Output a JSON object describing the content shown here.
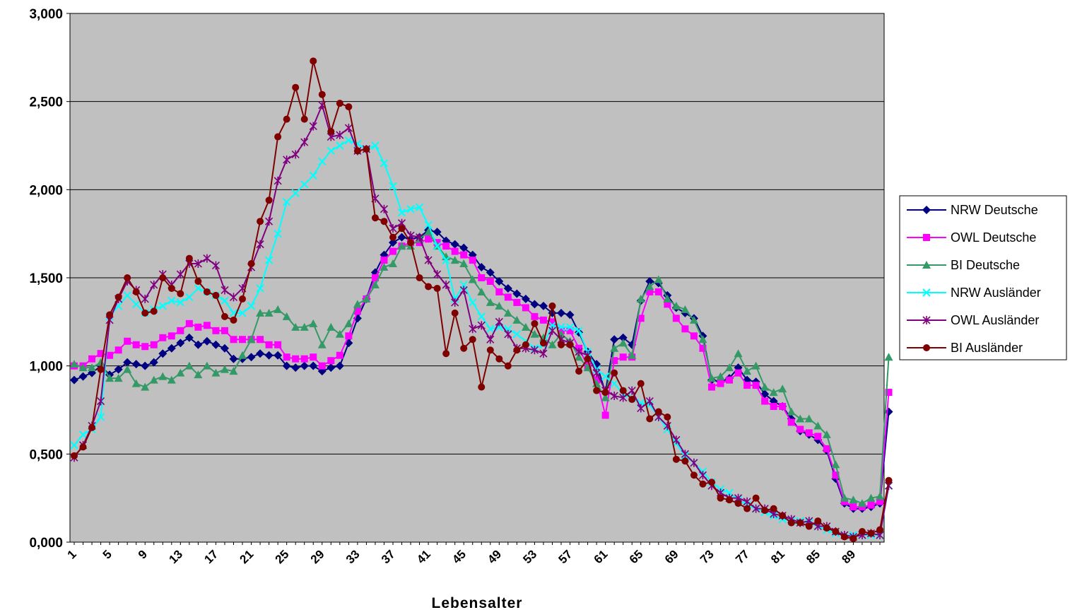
{
  "chart_data": {
    "type": "line",
    "xlabel": "Lebensalter",
    "ylabel": "",
    "ylim": [
      0,
      3
    ],
    "yticks": [
      0,
      0.5,
      1,
      1.5,
      2,
      2.5,
      3
    ],
    "ytick_labels": [
      "0,000",
      "0,500",
      "1,000",
      "1,500",
      "2,000",
      "2,500",
      "3,000"
    ],
    "xrange": [
      1,
      92
    ],
    "xticks": [
      1,
      5,
      9,
      13,
      17,
      21,
      25,
      29,
      33,
      37,
      41,
      45,
      49,
      53,
      57,
      61,
      65,
      69,
      73,
      77,
      81,
      85,
      89
    ],
    "xtick_labels": [
      "1",
      "5",
      "9",
      "13",
      "17",
      "21",
      "25",
      "29",
      "33",
      "37",
      "41",
      "45",
      "49",
      "53",
      "57",
      "61",
      "65",
      "69",
      "73",
      "77",
      "81",
      "85",
      "89"
    ],
    "grid": "horizontal",
    "plot_background": "#c0c0c0",
    "legend_position": "right",
    "series": [
      {
        "name": "NRW Deutsche",
        "color": "#000080",
        "marker": "diamond",
        "values": [
          0.92,
          0.94,
          0.96,
          1.0,
          0.95,
          0.98,
          1.02,
          1.01,
          1.0,
          1.02,
          1.07,
          1.1,
          1.13,
          1.16,
          1.12,
          1.14,
          1.12,
          1.1,
          1.04,
          1.04,
          1.05,
          1.07,
          1.06,
          1.06,
          1.0,
          0.99,
          1.0,
          1.0,
          0.97,
          0.99,
          1.0,
          1.13,
          1.27,
          1.38,
          1.53,
          1.63,
          1.7,
          1.73,
          1.72,
          1.73,
          1.77,
          1.76,
          1.71,
          1.69,
          1.67,
          1.63,
          1.56,
          1.53,
          1.48,
          1.44,
          1.41,
          1.38,
          1.35,
          1.34,
          1.3,
          1.3,
          1.29,
          1.19,
          1.08,
          1.01,
          0.85,
          1.15,
          1.16,
          1.12,
          1.37,
          1.48,
          1.47,
          1.4,
          1.33,
          1.3,
          1.27,
          1.17,
          0.92,
          0.91,
          0.93,
          0.99,
          0.92,
          0.91,
          0.84,
          0.8,
          0.77,
          0.7,
          0.63,
          0.61,
          0.58,
          0.52,
          0.36,
          0.22,
          0.19,
          0.19,
          0.2,
          0.22,
          0.74
        ]
      },
      {
        "name": "OWL Deutsche",
        "color": "#ff00ff",
        "marker": "square",
        "values": [
          1.0,
          1.0,
          1.04,
          1.07,
          1.06,
          1.09,
          1.14,
          1.12,
          1.11,
          1.12,
          1.16,
          1.17,
          1.2,
          1.24,
          1.22,
          1.23,
          1.2,
          1.2,
          1.15,
          1.15,
          1.15,
          1.15,
          1.12,
          1.12,
          1.05,
          1.04,
          1.04,
          1.05,
          1.0,
          1.03,
          1.06,
          1.17,
          1.31,
          1.38,
          1.5,
          1.6,
          1.65,
          1.68,
          1.7,
          1.7,
          1.72,
          1.7,
          1.68,
          1.65,
          1.63,
          1.6,
          1.5,
          1.48,
          1.42,
          1.39,
          1.36,
          1.33,
          1.28,
          1.26,
          1.25,
          1.2,
          1.2,
          1.1,
          1.0,
          0.92,
          0.72,
          1.03,
          1.05,
          1.05,
          1.27,
          1.42,
          1.42,
          1.35,
          1.27,
          1.21,
          1.17,
          1.1,
          0.88,
          0.9,
          0.92,
          0.96,
          0.89,
          0.89,
          0.8,
          0.77,
          0.77,
          0.68,
          0.64,
          0.62,
          0.6,
          0.53,
          0.38,
          0.23,
          0.2,
          0.2,
          0.21,
          0.23,
          0.85
        ]
      },
      {
        "name": "BI Deutsche",
        "color": "#339966",
        "marker": "triangle",
        "values": [
          1.01,
          0.99,
          0.99,
          1.02,
          0.93,
          0.93,
          0.98,
          0.9,
          0.88,
          0.92,
          0.94,
          0.92,
          0.96,
          1.0,
          0.95,
          1.0,
          0.96,
          0.98,
          0.97,
          1.06,
          1.15,
          1.3,
          1.3,
          1.32,
          1.28,
          1.22,
          1.22,
          1.24,
          1.12,
          1.22,
          1.18,
          1.24,
          1.35,
          1.38,
          1.46,
          1.56,
          1.58,
          1.68,
          1.68,
          1.72,
          1.76,
          1.68,
          1.62,
          1.6,
          1.58,
          1.49,
          1.42,
          1.36,
          1.34,
          1.3,
          1.26,
          1.22,
          1.18,
          1.16,
          1.12,
          1.18,
          1.14,
          1.05,
          0.99,
          0.9,
          0.82,
          1.1,
          1.13,
          1.06,
          1.38,
          1.45,
          1.49,
          1.38,
          1.34,
          1.32,
          1.26,
          1.15,
          0.93,
          0.94,
          0.99,
          1.07,
          0.97,
          1.0,
          0.88,
          0.85,
          0.87,
          0.74,
          0.7,
          0.7,
          0.66,
          0.61,
          0.44,
          0.25,
          0.24,
          0.22,
          0.25,
          0.26,
          1.05
        ]
      },
      {
        "name": "NRW Ausländer",
        "color": "#00ffff",
        "marker": "x",
        "values": [
          0.55,
          0.61,
          0.64,
          0.71,
          1.28,
          1.34,
          1.4,
          1.35,
          1.3,
          1.32,
          1.34,
          1.37,
          1.36,
          1.39,
          1.44,
          1.42,
          1.4,
          1.37,
          1.3,
          1.3,
          1.34,
          1.44,
          1.6,
          1.75,
          1.93,
          1.98,
          2.03,
          2.08,
          2.16,
          2.22,
          2.25,
          2.28,
          2.26,
          2.23,
          2.25,
          2.15,
          2.02,
          1.87,
          1.89,
          1.9,
          1.8,
          1.68,
          1.6,
          1.38,
          1.46,
          1.36,
          1.28,
          1.21,
          1.22,
          1.21,
          1.18,
          1.14,
          1.1,
          1.12,
          1.23,
          1.22,
          1.22,
          1.2,
          1.08,
          0.98,
          0.94,
          0.9,
          0.84,
          0.82,
          0.79,
          0.78,
          0.71,
          0.64,
          0.56,
          0.49,
          0.45,
          0.4,
          0.34,
          0.3,
          0.28,
          0.24,
          0.21,
          0.19,
          0.17,
          0.15,
          0.13,
          0.12,
          0.12,
          0.11,
          0.09,
          0.07,
          0.05,
          0.04,
          0.04,
          0.04,
          0.04,
          0.04,
          0.32
        ]
      },
      {
        "name": "OWL Ausländer",
        "color": "#800080",
        "marker": "star",
        "values": [
          0.48,
          0.55,
          0.66,
          0.8,
          1.26,
          1.38,
          1.48,
          1.43,
          1.38,
          1.46,
          1.52,
          1.46,
          1.52,
          1.58,
          1.58,
          1.61,
          1.57,
          1.43,
          1.39,
          1.44,
          1.56,
          1.69,
          1.82,
          2.05,
          2.17,
          2.2,
          2.27,
          2.36,
          2.48,
          2.3,
          2.31,
          2.35,
          2.22,
          2.23,
          1.95,
          1.89,
          1.78,
          1.81,
          1.74,
          1.73,
          1.6,
          1.52,
          1.46,
          1.36,
          1.43,
          1.21,
          1.23,
          1.15,
          1.25,
          1.18,
          1.1,
          1.1,
          1.09,
          1.07,
          1.2,
          1.15,
          1.13,
          1.08,
          1.06,
          0.96,
          0.86,
          0.83,
          0.82,
          0.86,
          0.76,
          0.8,
          0.71,
          0.66,
          0.58,
          0.5,
          0.45,
          0.38,
          0.32,
          0.28,
          0.25,
          0.25,
          0.23,
          0.19,
          0.19,
          0.16,
          0.15,
          0.13,
          0.11,
          0.12,
          0.09,
          0.09,
          0.06,
          0.04,
          0.03,
          0.04,
          0.05,
          0.04,
          0.32
        ]
      },
      {
        "name": "BI Ausländer",
        "color": "#800000",
        "marker": "circle",
        "values": [
          0.49,
          0.54,
          0.65,
          0.98,
          1.29,
          1.39,
          1.5,
          1.42,
          1.3,
          1.31,
          1.5,
          1.44,
          1.41,
          1.61,
          1.48,
          1.42,
          1.4,
          1.28,
          1.26,
          1.38,
          1.58,
          1.82,
          1.94,
          2.3,
          2.4,
          2.58,
          2.4,
          2.73,
          2.54,
          2.33,
          2.49,
          2.47,
          2.22,
          2.23,
          1.84,
          1.82,
          1.73,
          1.78,
          1.7,
          1.5,
          1.45,
          1.44,
          1.07,
          1.3,
          1.1,
          1.15,
          0.88,
          1.09,
          1.04,
          1.0,
          1.09,
          1.12,
          1.24,
          1.13,
          1.34,
          1.12,
          1.12,
          0.97,
          1.04,
          0.86,
          0.85,
          0.96,
          0.86,
          0.81,
          0.9,
          0.7,
          0.74,
          0.71,
          0.47,
          0.46,
          0.38,
          0.33,
          0.34,
          0.25,
          0.24,
          0.22,
          0.19,
          0.25,
          0.18,
          0.19,
          0.15,
          0.11,
          0.11,
          0.09,
          0.12,
          0.08,
          0.06,
          0.03,
          0.02,
          0.06,
          0.05,
          0.07,
          0.35
        ]
      }
    ]
  }
}
